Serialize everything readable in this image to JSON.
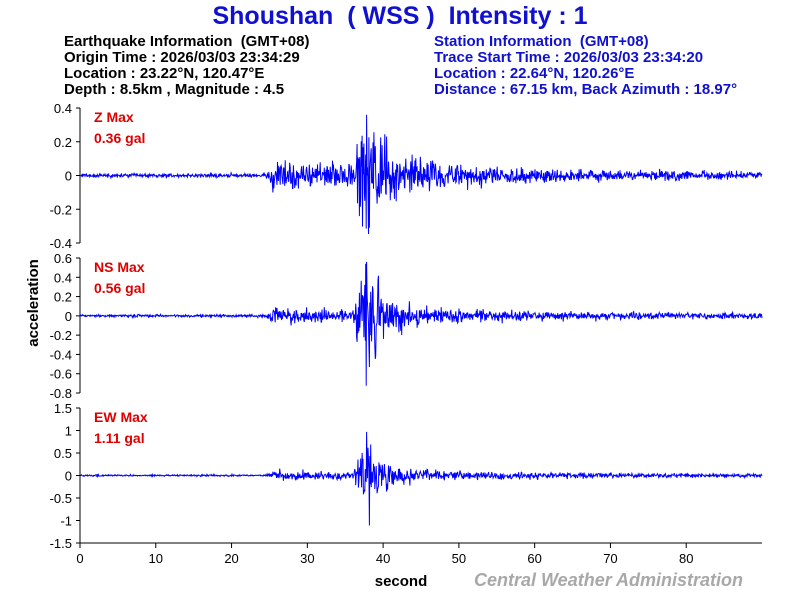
{
  "title": "Shoushan  ( WSS )  Intensity : 1",
  "earthquake_info": {
    "heading": "Earthquake Information  (GMT+08)",
    "origin_time": "Origin Time : 2026/03/03 23:34:29",
    "location": "Location : 23.22°N, 120.47°E",
    "depth_magnitude": "Depth : 8.5km , Magnitude : 4.5"
  },
  "station_info": {
    "heading": "Station Information  (GMT+08)",
    "trace_start": "Trace Start Time : 2026/03/03 23:34:20",
    "location": "Location : 22.64°N, 120.26°E",
    "distance": "Distance : 67.15 km, Back Azimuth : 18.97°"
  },
  "footer": "Central Weather Administration",
  "colors": {
    "trace": "#0000ff",
    "title": "#1010d0",
    "max_label": "#e00000",
    "footer": "#a8a8a8"
  },
  "chart_data": {
    "type": "line",
    "xlabel": "second",
    "ylabel": "acceleration",
    "xlim": [
      0,
      90
    ],
    "x_ticks": [
      0,
      10,
      20,
      30,
      40,
      50,
      60,
      70,
      80
    ],
    "x_tick_labels": [
      "0",
      "10",
      "20",
      "30",
      "40",
      "50",
      "60",
      "70",
      "80"
    ],
    "grid": false,
    "panels": [
      {
        "name": "Z",
        "max_label": "Z Max",
        "max_value": "0.36 gal",
        "ylim": [
          -0.4,
          0.4
        ],
        "y_ticks": [
          -0.4,
          -0.2,
          0,
          0.2,
          0.4
        ],
        "y_tick_labels": [
          "-0.4",
          "-0.2",
          "0",
          "0.2",
          "0.4"
        ],
        "peak": 0.36,
        "trough": -0.31,
        "noise": 0.012,
        "p_arrival": 24.5,
        "p_amp": 0.12,
        "s_arrival": 37.5,
        "s_amp": 0.34,
        "decay": 9,
        "coda": 0.035
      },
      {
        "name": "NS",
        "max_label": "NS Max",
        "max_value": "0.56 gal",
        "ylim": [
          -0.8,
          0.6
        ],
        "y_ticks": [
          -0.8,
          -0.6,
          -0.4,
          -0.2,
          0,
          0.2,
          0.4,
          0.6
        ],
        "y_tick_labels": [
          "-0.8",
          "-0.6",
          "-0.4",
          "-0.2",
          "0",
          "0.2",
          "0.4",
          "0.6"
        ],
        "peak": 0.56,
        "trough": -0.53,
        "noise": 0.015,
        "p_arrival": 24.5,
        "p_amp": 0.09,
        "s_arrival": 37.5,
        "s_amp": 0.52,
        "decay": 8,
        "coda": 0.05
      },
      {
        "name": "EW",
        "max_label": "EW Max",
        "max_value": "1.11 gal",
        "ylim": [
          -1.5,
          1.5
        ],
        "y_ticks": [
          -1.5,
          -1,
          -0.5,
          0,
          0.5,
          1,
          1.5
        ],
        "y_tick_labels": [
          "-1.5",
          "-1",
          "-0.5",
          "0",
          "0.5",
          "1",
          "1.5"
        ],
        "peak": 0.97,
        "trough": -1.11,
        "noise": 0.02,
        "p_arrival": 24.5,
        "p_amp": 0.12,
        "s_arrival": 37.5,
        "s_amp": 0.75,
        "decay": 8,
        "coda": 0.07
      }
    ]
  }
}
